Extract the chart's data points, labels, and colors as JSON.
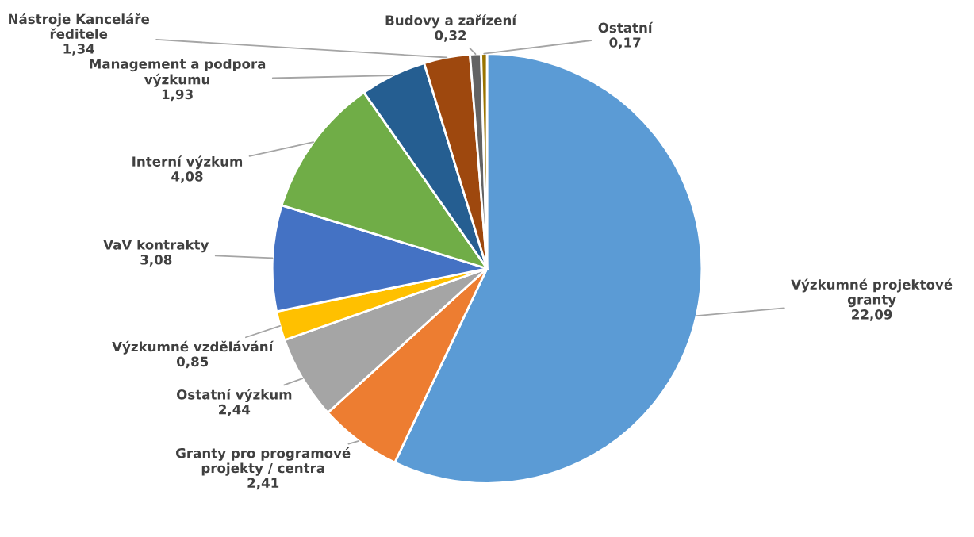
{
  "chart_data": {
    "type": "pie",
    "categories": [
      "Výzkumné projektové granty",
      "Granty pro programové projekty / centra",
      "Ostatní výzkum",
      "Výzkumné vzdělávání",
      "VaV kontrakty",
      "Interní výzkum",
      "Management a podpora výzkumu",
      "Nástroje Kanceláře ředitele",
      "Budovy a zařízení",
      "Ostatní"
    ],
    "values": [
      22.09,
      2.41,
      2.44,
      0.85,
      3.08,
      4.08,
      1.93,
      1.34,
      0.32,
      0.17
    ],
    "value_labels": [
      "22,09",
      "2,41",
      "2,44",
      "0,85",
      "3,08",
      "4,08",
      "1,93",
      "1,34",
      "0,32",
      "0,17"
    ],
    "colors": [
      "#5b9bd5",
      "#ed7d31",
      "#a5a5a5",
      "#ffc000",
      "#4472c4",
      "#70ad47",
      "#255e91",
      "#9e480e",
      "#636363",
      "#997300"
    ],
    "legend": false
  }
}
